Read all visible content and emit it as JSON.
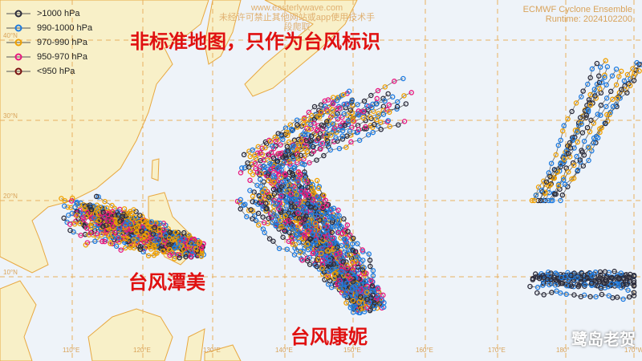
{
  "legend": [
    {
      "label": ">1000 hPa",
      "color": "#2b2b3b"
    },
    {
      "label": "990-1000 hPa",
      "color": "#1e7be0"
    },
    {
      "label": "970-990 hPa",
      "color": "#f0a000"
    },
    {
      "label": "950-970 hPa",
      "color": "#e8177f"
    },
    {
      "label": "<950 hPa",
      "color": "#7a1010"
    }
  ],
  "watermark": {
    "site": "www.easterlywave.com",
    "notice": "未经许可禁止其他网站或app使用技术手段爬取"
  },
  "credit": {
    "title": "ECMWF Cyclone Ensemble",
    "runtime": "Runtime: 2024102200"
  },
  "annotations": {
    "disclaimer": "非标准地图，只作为台风标识",
    "storm_west": "台风潭美",
    "storm_east": "台风康妮"
  },
  "lat_labels": [
    "40°N",
    "30°N",
    "20°N",
    "10°N"
  ],
  "lon_labels": [
    "110°E",
    "120°E",
    "130°E",
    "140°E",
    "150°E",
    "160°E",
    "170°E",
    "180°",
    "170°W"
  ],
  "brand": "鹭岛老贺",
  "colors": {
    "ocean": "#eef3f9",
    "land": "#f8f0c8",
    "grid": "#e8b060"
  }
}
